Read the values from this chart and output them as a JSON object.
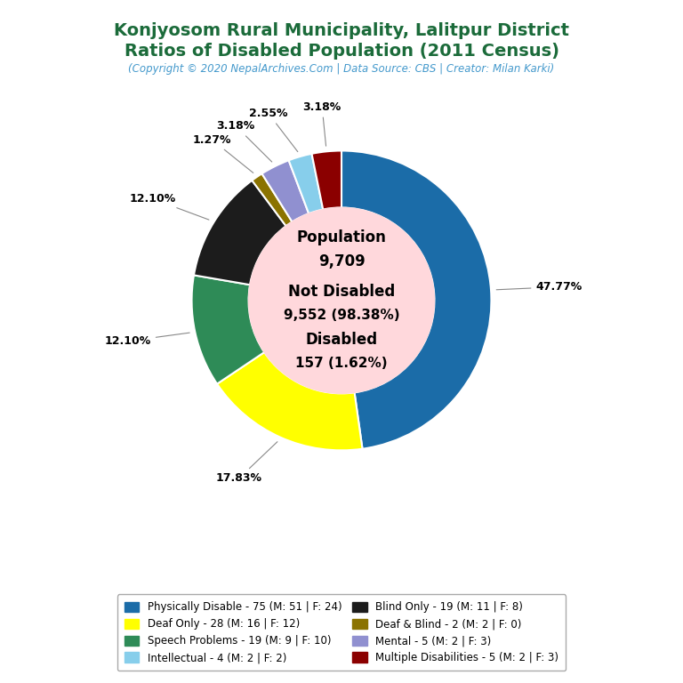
{
  "title_line1": "Konjyosom Rural Municipality, Lalitpur District",
  "title_line2": "Ratios of Disabled Population (2011 Census)",
  "subtitle": "(Copyright © 2020 NepalArchives.Com | Data Source: CBS | Creator: Milan Karki)",
  "total_population": 9709,
  "not_disabled": 9552,
  "not_disabled_pct": 98.38,
  "disabled": 157,
  "disabled_pct": 1.62,
  "slices": [
    {
      "label": "Physically Disable - 75 (M: 51 | F: 24)",
      "value": 75,
      "pct": "47.77%",
      "color": "#1B6CA8"
    },
    {
      "label": "Deaf Only - 28 (M: 16 | F: 12)",
      "value": 28,
      "pct": "17.83%",
      "color": "#FFFF00"
    },
    {
      "label": "Speech Problems - 19 (M: 9 | F: 10)",
      "value": 19,
      "pct": "12.10%",
      "color": "#2E8B57"
    },
    {
      "label": "Blind Only - 19 (M: 11 | F: 8)",
      "value": 19,
      "pct": "12.10%",
      "color": "#1C1C1C"
    },
    {
      "label": "Deaf & Blind - 2 (M: 2 | F: 0)",
      "value": 2,
      "pct": "1.27%",
      "color": "#8B7300"
    },
    {
      "label": "Mental - 5 (M: 2 | F: 3)",
      "value": 5,
      "pct": "3.18%",
      "color": "#9090D0"
    },
    {
      "label": "Intellectual - 4 (M: 2 | F: 2)",
      "value": 4,
      "pct": "2.55%",
      "color": "#87CEEB"
    },
    {
      "label": "Multiple Disabilities - 5 (M: 2 | F: 3)",
      "value": 5,
      "pct": "3.18%",
      "color": "#8B0000"
    }
  ],
  "legend_order": [
    0,
    1,
    2,
    6,
    3,
    4,
    5,
    7
  ],
  "title_color": "#1B6B3A",
  "subtitle_color": "#4499CC",
  "background_color": "#FFFFFF",
  "center_bg_color": "#FFD8DC"
}
